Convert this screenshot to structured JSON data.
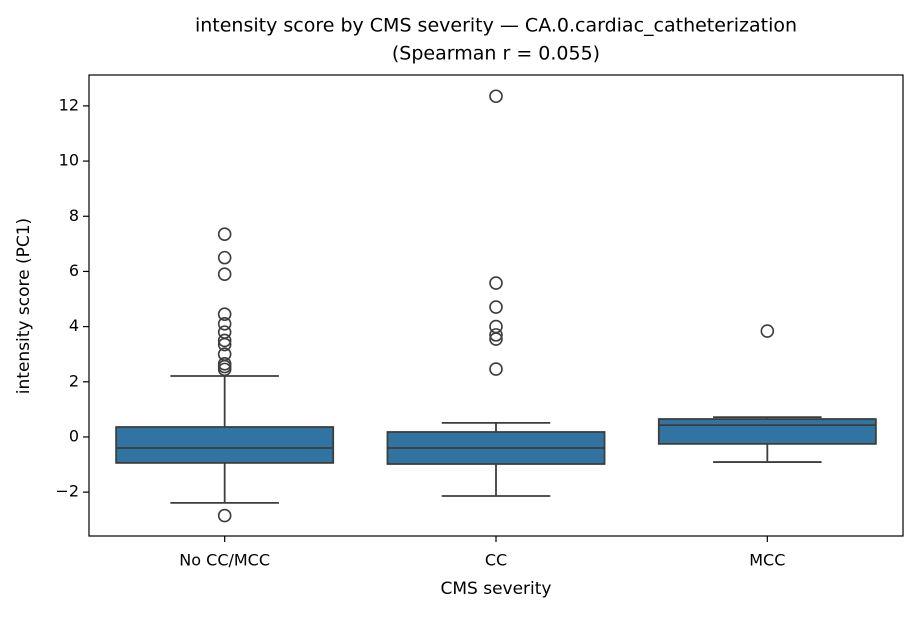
{
  "chart_data": {
    "type": "box",
    "title": "intensity score by CMS severity — CA.0.cardiac_catheterization",
    "subtitle": "(Spearman r = 0.055)",
    "x_label": "CMS severity",
    "y_label": "intensity score (PC1)",
    "categories": [
      "No CC/MCC",
      "CC",
      "MCC"
    ],
    "color": "#3274a1",
    "boxes": [
      {
        "whisker_low": -2.39,
        "q1": -0.94,
        "median": -0.4,
        "q3": 0.36,
        "whisker_high": 2.21,
        "outliers": [
          -2.85,
          7.35,
          6.5,
          5.9,
          4.45,
          4.1,
          3.8,
          3.5,
          3.35,
          3.0,
          2.65,
          2.55,
          2.45
        ]
      },
      {
        "whisker_low": -2.14,
        "q1": -0.98,
        "median": -0.4,
        "q3": 0.18,
        "whisker_high": 0.51,
        "outliers": [
          12.35,
          5.58,
          4.71,
          4.0,
          3.7,
          3.55,
          2.46
        ]
      },
      {
        "whisker_low": -0.91,
        "q1": -0.25,
        "median": 0.43,
        "q3": 0.65,
        "whisker_high": 0.72,
        "outliers": [
          3.84
        ]
      }
    ],
    "ylim": [
      -3.59,
      13.12
    ],
    "yticks": [
      {
        "value": -2,
        "label": "−2"
      },
      0,
      2,
      4,
      6,
      8,
      10,
      12
    ]
  }
}
